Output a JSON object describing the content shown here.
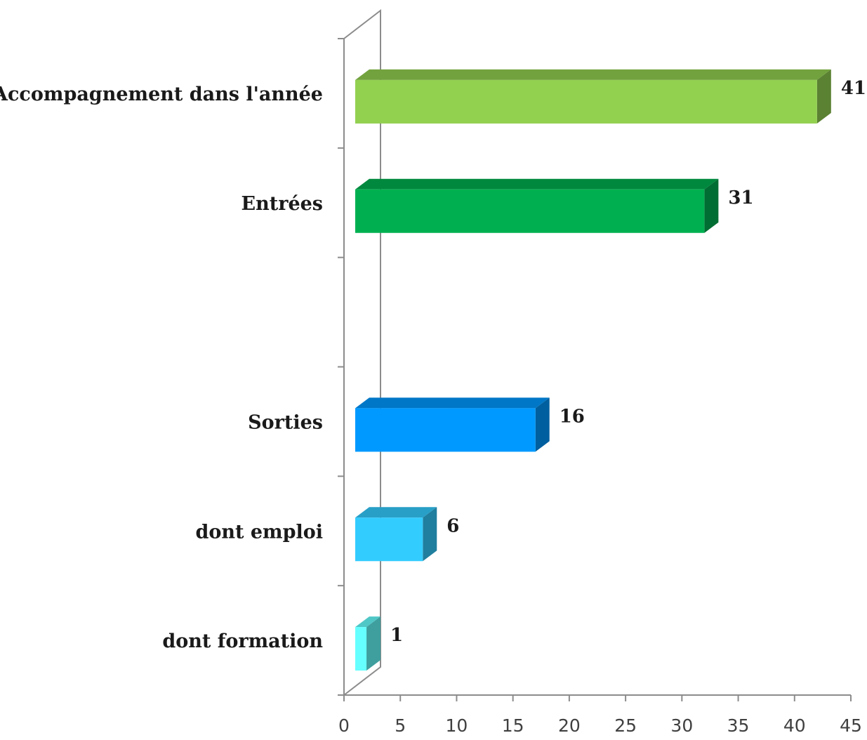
{
  "chart_data": {
    "type": "bar",
    "orientation": "horizontal",
    "style": "3d",
    "title": "",
    "xlabel": "",
    "ylabel": "",
    "xlim": [
      0,
      45
    ],
    "x_ticks": [
      "0",
      "5",
      "10",
      "15",
      "20",
      "25",
      "30",
      "35",
      "40",
      "45"
    ],
    "categories": [
      "Accompagnement dans l'année",
      "Entrées",
      "",
      "Sorties",
      "dont emploi",
      "dont formation"
    ],
    "values": [
      41,
      31,
      null,
      16,
      6,
      1
    ],
    "value_labels": [
      "41",
      "31",
      "",
      "16",
      "6",
      "1"
    ],
    "colors": [
      "#92d050",
      "#00b050",
      null,
      "#0099ff",
      "#33ccff",
      "#66ffff"
    ],
    "grid": false,
    "legend": "none"
  }
}
